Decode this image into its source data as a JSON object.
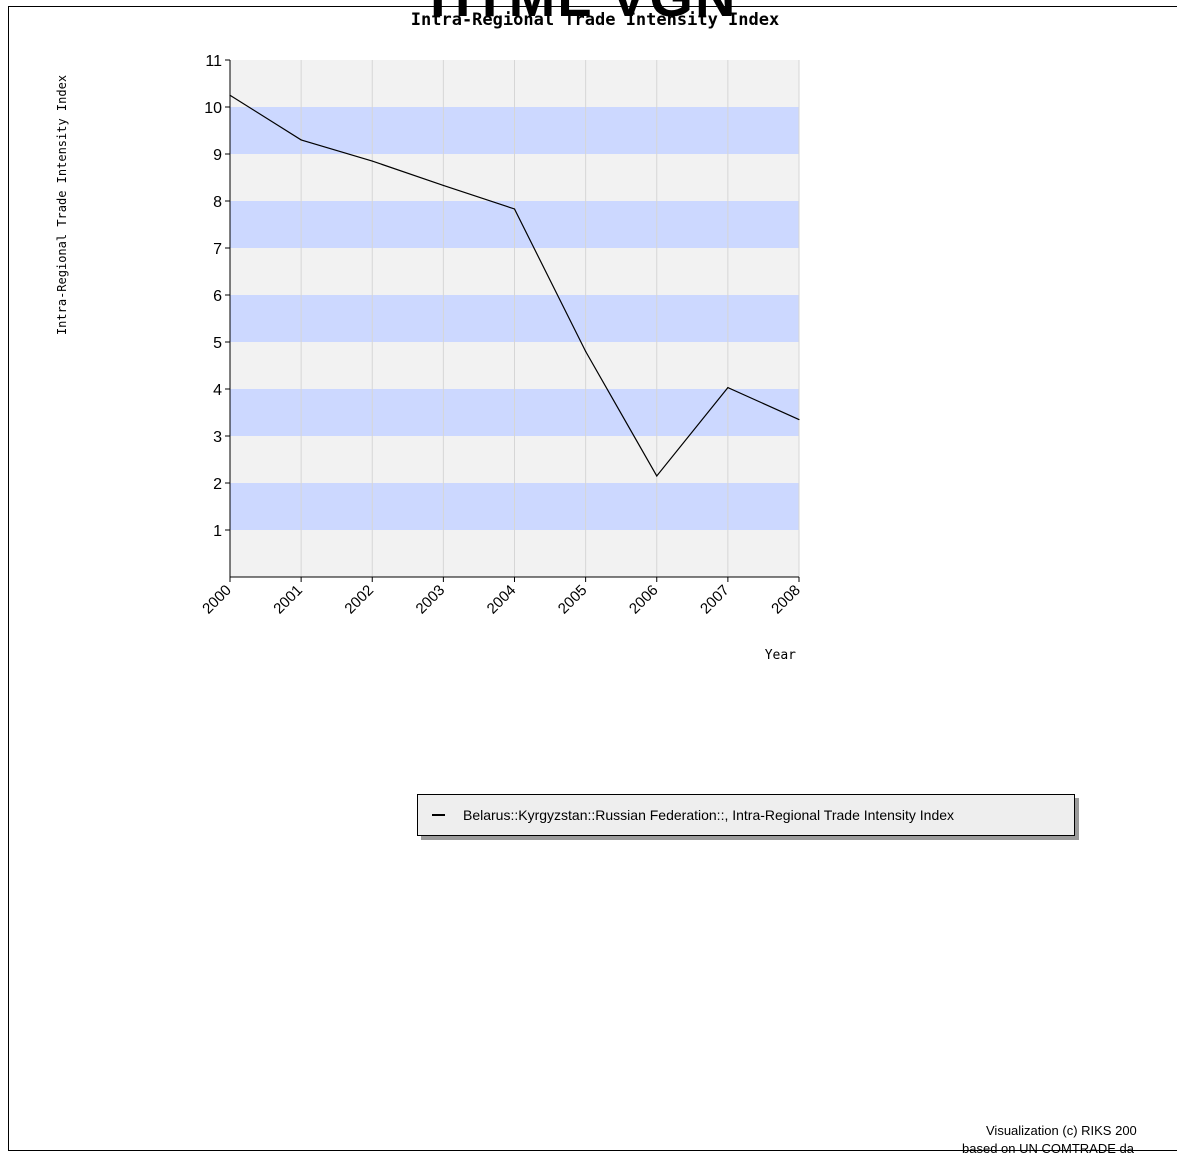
{
  "banner": {
    "text": "HTML VGN"
  },
  "chart_data": {
    "type": "line",
    "title": "Intra-Regional Trade Intensity Index",
    "xlabel": "Year",
    "ylabel": "Intra-Regional Trade Intensity Index",
    "categories": [
      "2000",
      "2001",
      "2002",
      "2003",
      "2004",
      "2005",
      "2006",
      "2007",
      "2008"
    ],
    "series": [
      {
        "name": "Belarus::Kyrgyzstan::Russian Federation::, Intra-Regional Trade Intensity Index",
        "values": [
          10.25,
          9.3,
          8.85,
          8.33,
          7.83,
          4.8,
          2.15,
          4.03,
          3.35
        ]
      }
    ],
    "ylim": [
      0,
      11
    ],
    "yticks": [
      1,
      2,
      3,
      4,
      5,
      6,
      7,
      8,
      9,
      10,
      11
    ],
    "grid": true,
    "legend_position": "below",
    "colors": {
      "line": "#000000",
      "band_light": "#f2f2f2",
      "band_blue": "#ccd8ff",
      "grid": "#d6d6d6"
    }
  },
  "footer": {
    "credit_line1": "Visualization (c) RIKS 200",
    "credit_line2": "based on UN COMTRADE da"
  }
}
